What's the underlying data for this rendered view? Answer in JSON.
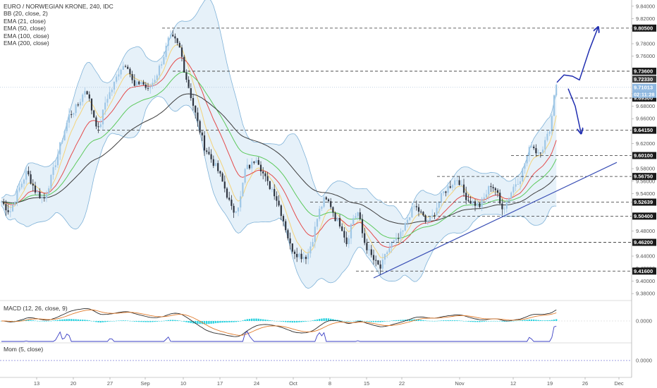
{
  "header": {
    "title": "EURO / NORWEGIAN KRONE, 240, IDC",
    "indicators": [
      "BB (20, close, 2)",
      "EMA (21, close)",
      "EMA (50, close)",
      "EMA (100, close)",
      "EMA (200, close)"
    ]
  },
  "macd_label": "MACD (12, 26, close, 9)",
  "mom_label": "Mom (5, close)",
  "colors": {
    "candle_up": "#9fc7e6",
    "candle_down": "#2f3540",
    "bb": "#7fb2d8",
    "bb_fill": "#dcebf7",
    "ema21": "#f4d37a",
    "ema50": "#e44b4b",
    "ema100": "#5cc95c",
    "ema200": "#3d3d3d",
    "trendline": "#3a4fb5",
    "arrow": "#1f2db0",
    "level": "#333333",
    "macd": "#2b2b2b",
    "signal": "#e07a2a",
    "hist": "#2fd3e0",
    "mom": "#3a3fc4"
  },
  "chart_data": {
    "type": "candlestick",
    "title": "EURO / NORWEGIAN KRONE, 240, IDC",
    "ylim": [
      9.37,
      9.85
    ],
    "y_ticks": [
      "9.84000",
      "9.82000",
      "9.78000",
      "9.76000",
      "9.70000",
      "9.68000",
      "9.66000",
      "9.62000",
      "9.58000",
      "9.56000",
      "9.54000",
      "9.48000",
      "9.44000",
      "9.42000",
      "9.40000",
      "9.38000"
    ],
    "x_ticks": [
      "13",
      "20",
      "27",
      "Sep",
      "10",
      "17",
      "24",
      "Oct",
      "8",
      "15",
      "22",
      "Nov",
      "12",
      "19",
      "26",
      "Dec"
    ],
    "levels": [
      {
        "label": "9.80500",
        "value": 9.805
      },
      {
        "label": "9.73600",
        "value": 9.736
      },
      {
        "label": "9.69300",
        "value": 9.693
      },
      {
        "label": "9.64150",
        "value": 9.6415
      },
      {
        "label": "9.60100",
        "value": 9.601
      },
      {
        "label": "9.56750",
        "value": 9.5675
      },
      {
        "label": "9.52639",
        "value": 9.52639
      },
      {
        "label": "9.50400",
        "value": 9.504
      },
      {
        "label": "9.46200",
        "value": 9.462
      },
      {
        "label": "9.41600",
        "value": 9.416
      }
    ],
    "price_tags": [
      {
        "label": "9.72330",
        "value": 9.7233
      },
      {
        "label": "9.71013",
        "value": 9.71013
      },
      {
        "label": "02:11:28",
        "value": 9.699
      }
    ],
    "price_path": [
      [
        0,
        9.53
      ],
      [
        14,
        9.51
      ],
      [
        26,
        9.545
      ],
      [
        38,
        9.575
      ],
      [
        50,
        9.545
      ],
      [
        62,
        9.53
      ],
      [
        74,
        9.57
      ],
      [
        86,
        9.62
      ],
      [
        98,
        9.665
      ],
      [
        110,
        9.68
      ],
      [
        122,
        9.71
      ],
      [
        130,
        9.675
      ],
      [
        140,
        9.64
      ],
      [
        150,
        9.69
      ],
      [
        160,
        9.71
      ],
      [
        170,
        9.74
      ],
      [
        180,
        9.75
      ],
      [
        190,
        9.71
      ],
      [
        200,
        9.72
      ],
      [
        210,
        9.705
      ],
      [
        222,
        9.73
      ],
      [
        232,
        9.76
      ],
      [
        240,
        9.79
      ],
      [
        248,
        9.785
      ],
      [
        256,
        9.77
      ],
      [
        262,
        9.735
      ],
      [
        270,
        9.7
      ],
      [
        280,
        9.655
      ],
      [
        290,
        9.615
      ],
      [
        300,
        9.595
      ],
      [
        310,
        9.575
      ],
      [
        320,
        9.545
      ],
      [
        330,
        9.51
      ],
      [
        340,
        9.525
      ],
      [
        348,
        9.58
      ],
      [
        356,
        9.585
      ],
      [
        364,
        9.6
      ],
      [
        372,
        9.575
      ],
      [
        380,
        9.555
      ],
      [
        388,
        9.545
      ],
      [
        396,
        9.52
      ],
      [
        404,
        9.49
      ],
      [
        412,
        9.455
      ],
      [
        420,
        9.445
      ],
      [
        428,
        9.44
      ],
      [
        436,
        9.44
      ],
      [
        444,
        9.47
      ],
      [
        452,
        9.51
      ],
      [
        460,
        9.53
      ],
      [
        468,
        9.525
      ],
      [
        476,
        9.5
      ],
      [
        484,
        9.49
      ],
      [
        492,
        9.46
      ],
      [
        500,
        9.5
      ],
      [
        508,
        9.51
      ],
      [
        516,
        9.465
      ],
      [
        524,
        9.445
      ],
      [
        532,
        9.43
      ],
      [
        540,
        9.42
      ],
      [
        548,
        9.445
      ],
      [
        556,
        9.46
      ],
      [
        564,
        9.465
      ],
      [
        572,
        9.48
      ],
      [
        580,
        9.505
      ],
      [
        588,
        9.52
      ],
      [
        596,
        9.51
      ],
      [
        604,
        9.495
      ],
      [
        612,
        9.5
      ],
      [
        620,
        9.52
      ],
      [
        628,
        9.54
      ],
      [
        636,
        9.55
      ],
      [
        644,
        9.56
      ],
      [
        650,
        9.565
      ],
      [
        656,
        9.545
      ],
      [
        664,
        9.53
      ],
      [
        672,
        9.525
      ],
      [
        680,
        9.52
      ],
      [
        688,
        9.535
      ],
      [
        696,
        9.555
      ],
      [
        704,
        9.545
      ],
      [
        710,
        9.52
      ],
      [
        716,
        9.52
      ],
      [
        722,
        9.535
      ],
      [
        730,
        9.555
      ],
      [
        738,
        9.565
      ],
      [
        746,
        9.595
      ],
      [
        754,
        9.62
      ],
      [
        762,
        9.605
      ],
      [
        770,
        9.615
      ],
      [
        776,
        9.63
      ],
      [
        782,
        9.655
      ],
      [
        786,
        9.7
      ],
      [
        790,
        9.72
      ]
    ],
    "arrows": [
      {
        "name": "up",
        "path": [
          [
            790,
            9.718
          ],
          [
            800,
            9.73
          ],
          [
            812,
            9.728
          ],
          [
            822,
            9.722
          ],
          [
            836,
            9.77
          ],
          [
            848,
            9.805
          ]
        ]
      },
      {
        "name": "down",
        "path": [
          [
            806,
            9.708
          ],
          [
            816,
            9.68
          ],
          [
            824,
            9.638
          ]
        ]
      }
    ],
    "trendline": [
      [
        530,
        9.405
      ],
      [
        875,
        9.59
      ]
    ]
  }
}
